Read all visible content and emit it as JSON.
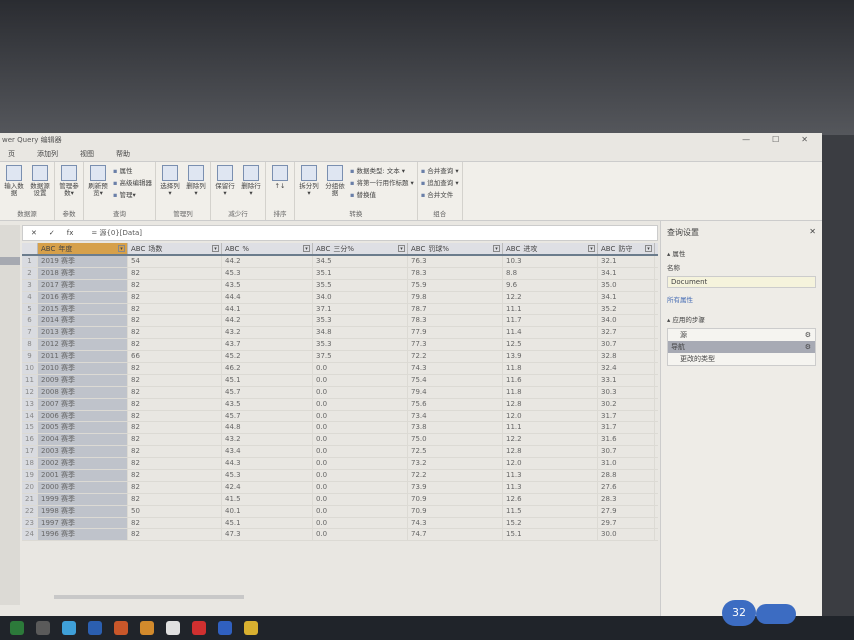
{
  "window": {
    "title": "wer Query 编辑器",
    "controls": [
      "—",
      "☐",
      "✕"
    ]
  },
  "menu": [
    "页",
    "添加列",
    "视图",
    "帮助"
  ],
  "ribbon": {
    "groups": [
      {
        "label": "数据源",
        "buttons": [
          "输入数据",
          "数据源设置"
        ]
      },
      {
        "label": "参数",
        "buttons": [
          "管理参数▾"
        ]
      },
      {
        "label": "查询",
        "buttons": [
          "刷新预览▾"
        ],
        "small": [
          "属性",
          "高级编辑器",
          "管理▾"
        ]
      },
      {
        "label": "管理列",
        "buttons": [
          "选择列▾",
          "删除列▾"
        ]
      },
      {
        "label": "减少行",
        "buttons": [
          "保留行▾",
          "删除行▾"
        ]
      },
      {
        "label": "排序",
        "buttons": [
          "↑↓"
        ]
      },
      {
        "label": "转换",
        "buttons": [
          "拆分列▾",
          "分组依据"
        ],
        "small": [
          "数据类型: 文本 ▾",
          "将第一行用作标题 ▾",
          "替换值"
        ]
      },
      {
        "label": "组合",
        "small": [
          "合并查询 ▾",
          "追加查询 ▾",
          "合并文件"
        ]
      }
    ]
  },
  "formula": {
    "cancel": "✕",
    "confirm": "✓",
    "fx": "fx",
    "text": "= 源{0}[Data]"
  },
  "table": {
    "columns": [
      "年度",
      "场数",
      "%",
      "三分%",
      "罚球%",
      "进攻",
      "防守"
    ],
    "type_icon": "ABC",
    "rows": [
      [
        "2019 赛季",
        "54",
        "44.2",
        "34.5",
        "76.3",
        "10.3",
        "32.1"
      ],
      [
        "2018 赛季",
        "82",
        "45.3",
        "35.1",
        "78.3",
        "8.8",
        "34.1"
      ],
      [
        "2017 赛季",
        "82",
        "43.5",
        "35.5",
        "75.9",
        "9.6",
        "35.0"
      ],
      [
        "2016 赛季",
        "82",
        "44.4",
        "34.0",
        "79.8",
        "12.2",
        "34.1"
      ],
      [
        "2015 赛季",
        "82",
        "44.1",
        "37.1",
        "78.7",
        "11.1",
        "35.2"
      ],
      [
        "2014 赛季",
        "82",
        "44.2",
        "35.3",
        "78.3",
        "11.7",
        "34.0"
      ],
      [
        "2013 赛季",
        "82",
        "43.2",
        "34.8",
        "77.9",
        "11.4",
        "32.7"
      ],
      [
        "2012 赛季",
        "82",
        "43.7",
        "35.3",
        "77.3",
        "12.5",
        "30.7"
      ],
      [
        "2011 赛季",
        "66",
        "45.2",
        "37.5",
        "72.2",
        "13.9",
        "32.8"
      ],
      [
        "2010 赛季",
        "82",
        "46.2",
        "0.0",
        "74.3",
        "11.8",
        "32.4"
      ],
      [
        "2009 赛季",
        "82",
        "45.1",
        "0.0",
        "75.4",
        "11.6",
        "33.1"
      ],
      [
        "2008 赛季",
        "82",
        "45.7",
        "0.0",
        "79.4",
        "11.8",
        "30.3"
      ],
      [
        "2007 赛季",
        "82",
        "43.5",
        "0.0",
        "75.6",
        "12.8",
        "30.2"
      ],
      [
        "2006 赛季",
        "82",
        "45.7",
        "0.0",
        "73.4",
        "12.0",
        "31.7"
      ],
      [
        "2005 赛季",
        "82",
        "44.8",
        "0.0",
        "73.8",
        "11.1",
        "31.7"
      ],
      [
        "2004 赛季",
        "82",
        "43.2",
        "0.0",
        "75.0",
        "12.2",
        "31.6"
      ],
      [
        "2003 赛季",
        "82",
        "43.4",
        "0.0",
        "72.5",
        "12.8",
        "30.7"
      ],
      [
        "2002 赛季",
        "82",
        "44.3",
        "0.0",
        "73.2",
        "12.0",
        "31.0"
      ],
      [
        "2001 赛季",
        "82",
        "45.3",
        "0.0",
        "72.2",
        "11.3",
        "28.8"
      ],
      [
        "2000 赛季",
        "82",
        "42.4",
        "0.0",
        "73.9",
        "11.3",
        "27.6"
      ],
      [
        "1999 赛季",
        "82",
        "41.5",
        "0.0",
        "70.9",
        "12.6",
        "28.3"
      ],
      [
        "1998 赛季",
        "50",
        "40.1",
        "0.0",
        "70.9",
        "11.5",
        "27.9"
      ],
      [
        "1997 赛季",
        "82",
        "45.1",
        "0.0",
        "74.3",
        "15.2",
        "29.7"
      ],
      [
        "1996 赛季",
        "82",
        "47.3",
        "0.0",
        "74.7",
        "15.1",
        "30.0"
      ]
    ]
  },
  "query_settings": {
    "title": "查询设置",
    "close": "✕",
    "properties_label": "属性",
    "name_label": "名称",
    "name_value": "Document",
    "all_properties": "所有属性",
    "steps_label": "应用的步骤",
    "steps": [
      "源",
      "导航",
      "更改的类型"
    ],
    "active_step": 1
  },
  "taskbar": {
    "badge": "32"
  }
}
